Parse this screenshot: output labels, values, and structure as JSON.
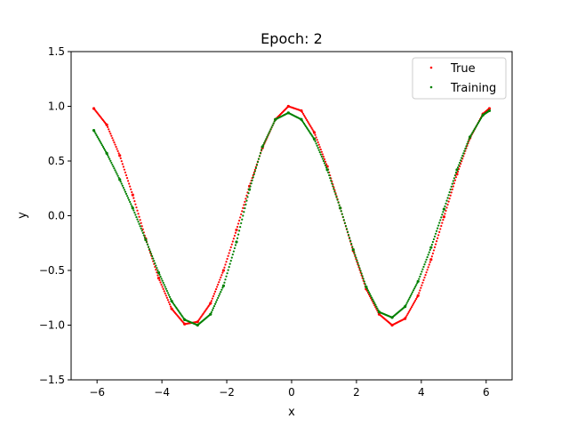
{
  "chart_data": {
    "type": "scatter",
    "title": "Epoch: 2",
    "xlabel": "x",
    "ylabel": "y",
    "xlim": [
      -6.8,
      6.8
    ],
    "ylim": [
      -1.5,
      1.5
    ],
    "xticks": [
      -6,
      -4,
      -2,
      0,
      2,
      4,
      6
    ],
    "xtick_labels": [
      "−6",
      "−4",
      "−2",
      "0",
      "2",
      "4",
      "6"
    ],
    "yticks": [
      -1.5,
      -1.0,
      -0.5,
      0.0,
      0.5,
      1.0,
      1.5
    ],
    "ytick_labels": [
      "−1.5",
      "−1.0",
      "−0.5",
      "0.0",
      "0.5",
      "1.0",
      "1.5"
    ],
    "grid": false,
    "legend_position": "top-right",
    "series": [
      {
        "name": "True",
        "color": "#ff0000",
        "x": [
          -6.1,
          -5.7,
          -5.3,
          -4.9,
          -4.5,
          -4.1,
          -3.7,
          -3.3,
          -2.9,
          -2.5,
          -2.1,
          -1.7,
          -1.3,
          -0.9,
          -0.5,
          -0.1,
          0.3,
          0.7,
          1.1,
          1.5,
          1.9,
          2.3,
          2.7,
          3.1,
          3.5,
          3.9,
          4.3,
          4.7,
          5.1,
          5.5,
          5.9,
          6.1
        ],
        "y": [
          0.98,
          0.83,
          0.55,
          0.19,
          -0.21,
          -0.57,
          -0.85,
          -0.99,
          -0.97,
          -0.8,
          -0.5,
          -0.13,
          0.27,
          0.62,
          0.88,
          1.0,
          0.96,
          0.76,
          0.45,
          0.07,
          -0.32,
          -0.67,
          -0.9,
          -1.0,
          -0.94,
          -0.73,
          -0.4,
          -0.01,
          0.38,
          0.71,
          0.93,
          0.98
        ]
      },
      {
        "name": "Training",
        "color": "#008000",
        "x": [
          -6.1,
          -5.7,
          -5.3,
          -4.9,
          -4.5,
          -4.1,
          -3.7,
          -3.3,
          -2.9,
          -2.5,
          -2.1,
          -1.7,
          -1.3,
          -0.9,
          -0.5,
          -0.1,
          0.3,
          0.7,
          1.1,
          1.5,
          1.9,
          2.3,
          2.7,
          3.1,
          3.5,
          3.9,
          4.3,
          4.7,
          5.1,
          5.5,
          5.9,
          6.1
        ],
        "y": [
          0.78,
          0.57,
          0.33,
          0.07,
          -0.22,
          -0.52,
          -0.78,
          -0.95,
          -1.0,
          -0.9,
          -0.64,
          -0.24,
          0.24,
          0.63,
          0.88,
          0.94,
          0.88,
          0.7,
          0.42,
          0.07,
          -0.31,
          -0.65,
          -0.88,
          -0.93,
          -0.83,
          -0.6,
          -0.29,
          0.06,
          0.42,
          0.72,
          0.92,
          0.96
        ]
      }
    ]
  }
}
